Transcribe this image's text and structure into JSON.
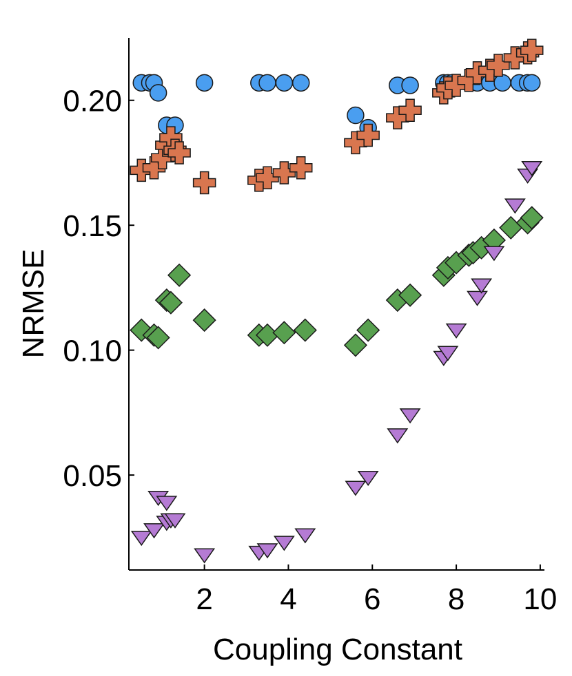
{
  "chart_data": {
    "type": "scatter",
    "title": "",
    "xlabel": "Coupling Constant",
    "ylabel": "NRMSE",
    "xlim": [
      0.2,
      10.1
    ],
    "ylim": [
      0.012,
      0.225
    ],
    "xticks": [
      2,
      4,
      6,
      8,
      10
    ],
    "xtick_labels": [
      "2",
      "4",
      "6",
      "8",
      "10"
    ],
    "yticks": [
      0.05,
      0.1,
      0.15,
      0.2
    ],
    "ytick_labels": [
      "0.05",
      "0.10",
      "0.15",
      "0.20"
    ],
    "grid": false,
    "legend": "none",
    "series": [
      {
        "name": "circle",
        "marker": "circle",
        "color": "#4a9ef0",
        "x": [
          0.5,
          0.7,
          0.8,
          0.9,
          1.1,
          1.3,
          2.0,
          3.3,
          3.5,
          3.9,
          4.3,
          5.6,
          5.9,
          6.6,
          6.9,
          7.7,
          7.8,
          7.9,
          8.3,
          8.5,
          8.8,
          9.1,
          9.5,
          9.7,
          9.8
        ],
        "y": [
          0.207,
          0.207,
          0.207,
          0.203,
          0.19,
          0.19,
          0.207,
          0.207,
          0.207,
          0.207,
          0.207,
          0.194,
          0.189,
          0.206,
          0.206,
          0.207,
          0.207,
          0.207,
          0.207,
          0.207,
          0.207,
          0.207,
          0.207,
          0.207,
          0.207
        ]
      },
      {
        "name": "plus",
        "marker": "plus",
        "color": "#d9764f",
        "x": [
          0.5,
          0.8,
          1.0,
          1.1,
          1.2,
          1.3,
          1.4,
          2.0,
          3.3,
          3.5,
          3.9,
          4.3,
          5.6,
          5.9,
          6.6,
          6.9,
          7.7,
          7.8,
          8.0,
          8.3,
          8.5,
          8.8,
          9.0,
          9.4,
          9.7,
          9.8
        ],
        "y": [
          0.172,
          0.173,
          0.177,
          0.182,
          0.185,
          0.18,
          0.179,
          0.167,
          0.168,
          0.169,
          0.171,
          0.173,
          0.183,
          0.186,
          0.193,
          0.196,
          0.203,
          0.205,
          0.206,
          0.208,
          0.211,
          0.212,
          0.214,
          0.217,
          0.219,
          0.22
        ]
      },
      {
        "name": "diamond",
        "marker": "diamond",
        "color": "#58a04f",
        "x": [
          0.5,
          0.8,
          0.9,
          1.1,
          1.2,
          1.4,
          2.0,
          3.3,
          3.5,
          3.9,
          4.4,
          5.6,
          5.9,
          6.6,
          6.9,
          7.7,
          7.8,
          8.0,
          8.3,
          8.4,
          8.6,
          8.9,
          9.3,
          9.7,
          9.8
        ],
        "y": [
          0.108,
          0.106,
          0.105,
          0.12,
          0.119,
          0.13,
          0.112,
          0.106,
          0.106,
          0.107,
          0.108,
          0.102,
          0.108,
          0.12,
          0.122,
          0.13,
          0.133,
          0.135,
          0.138,
          0.139,
          0.141,
          0.144,
          0.149,
          0.151,
          0.153
        ]
      },
      {
        "name": "triangle-down",
        "marker": "triangle-down",
        "color": "#b57bd4",
        "x": [
          0.5,
          0.8,
          0.9,
          1.1,
          1.1,
          1.2,
          1.3,
          2.0,
          3.3,
          3.5,
          3.9,
          4.4,
          5.6,
          5.9,
          6.6,
          6.9,
          7.7,
          7.8,
          8.0,
          8.5,
          8.6,
          8.9,
          9.4,
          9.7,
          9.8
        ],
        "y": [
          0.025,
          0.028,
          0.041,
          0.039,
          0.031,
          0.032,
          0.032,
          0.018,
          0.019,
          0.02,
          0.023,
          0.026,
          0.045,
          0.049,
          0.066,
          0.074,
          0.097,
          0.099,
          0.108,
          0.121,
          0.126,
          0.139,
          0.158,
          0.17,
          0.173
        ]
      }
    ]
  }
}
